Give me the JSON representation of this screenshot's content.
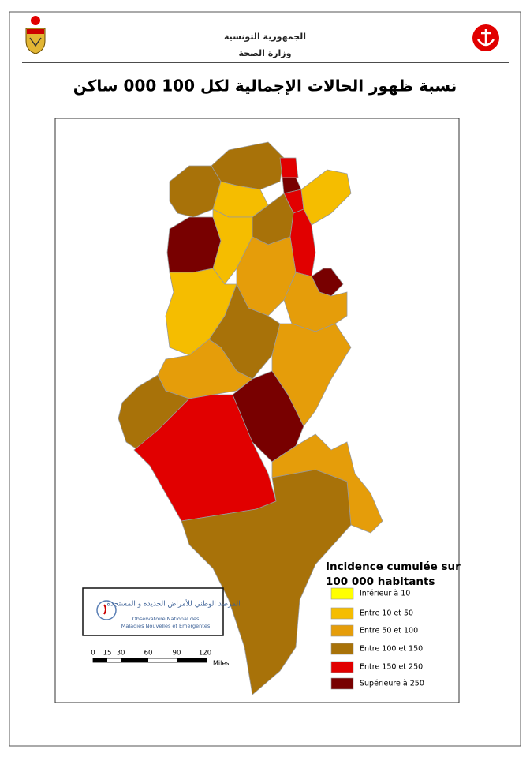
{
  "header": {
    "line1": "الجمهورية التونسية",
    "line2": "وزارة الصحة"
  },
  "title": "نسبة ظهور الحالات الإجمالية لكل 100 000 ساكن",
  "legend": {
    "title_lines": [
      "Incidence cumulée sur",
      "100 000 habitants"
    ],
    "items": [
      {
        "label": "Inférieur à 10",
        "color": "#ffff00"
      },
      {
        "label": "Entre 10 et 50",
        "color": "#f5bd00"
      },
      {
        "label": "Entre 50 et 100",
        "color": "#e59d0a"
      },
      {
        "label": "Entre 100 et 150",
        "color": "#a87209"
      },
      {
        "label": "Entre 150 et 250",
        "color": "#e10000"
      },
      {
        "label": "Supérieure à 250",
        "color": "#780000"
      }
    ]
  },
  "scale": {
    "ticks": [
      "0",
      "15",
      "30",
      "60",
      "90",
      "120"
    ],
    "unit": "Miles"
  },
  "logo": {
    "arabic": "المرصد الوطني للأمراض الجديدة و المستجدة",
    "french_lines": [
      "Observatoire National des",
      "Maladies Nouvelles et Émergentes"
    ]
  }
}
